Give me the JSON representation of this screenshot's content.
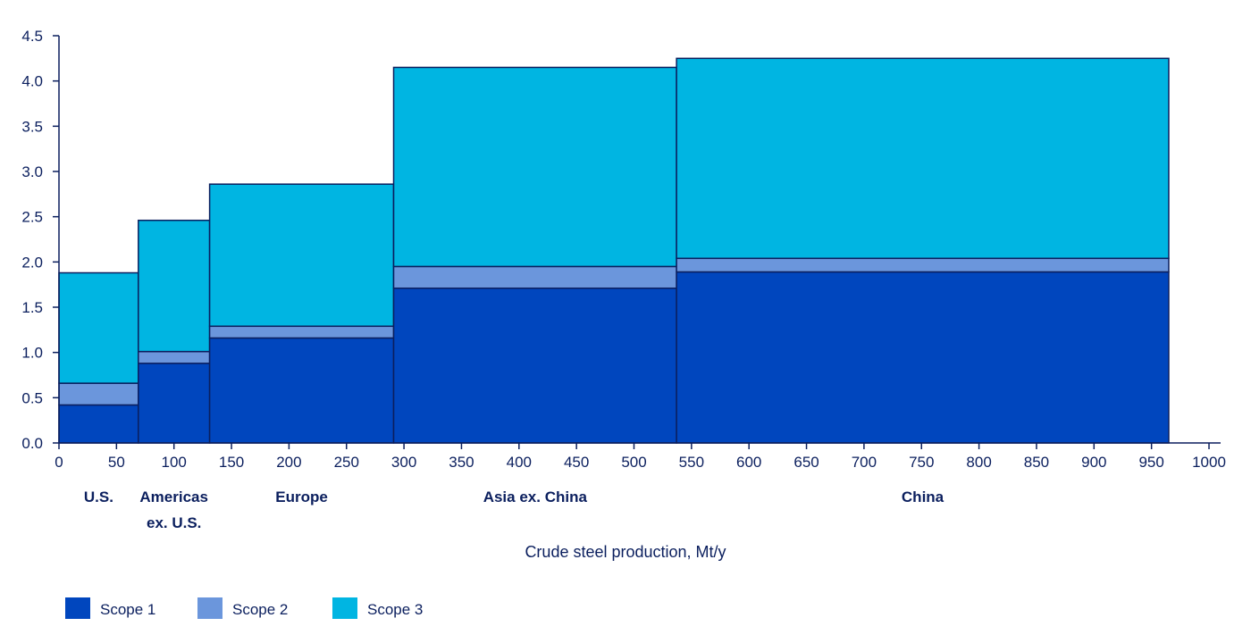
{
  "chart_data": {
    "type": "bar",
    "subtype": "variable-width stacked bar",
    "xlabel": "Crude steel production, Mt/y",
    "ylabel": "",
    "title": "",
    "xlim": [
      0,
      1000
    ],
    "ylim": [
      0,
      4.5
    ],
    "x_ticks": [
      0,
      50,
      100,
      150,
      200,
      250,
      300,
      350,
      400,
      450,
      500,
      550,
      600,
      650,
      700,
      750,
      800,
      850,
      900,
      950,
      1000
    ],
    "y_ticks": [
      0.0,
      0.5,
      1.0,
      1.5,
      2.0,
      2.5,
      3.0,
      3.5,
      4.0,
      4.5
    ],
    "y_tick_labels": [
      "0.0",
      "0.5",
      "1.0",
      "1.5",
      "2.0",
      "2.5",
      "3.0",
      "3.5",
      "4.0",
      "4.5"
    ],
    "grid": false,
    "legend_position": "bottom-left",
    "categories": [
      {
        "label_lines": [
          "U.S."
        ],
        "x_start": 0,
        "x_end": 69
      },
      {
        "label_lines": [
          "Americas",
          "ex. U.S."
        ],
        "x_start": 69,
        "x_end": 131
      },
      {
        "label_lines": [
          "Europe"
        ],
        "x_start": 131,
        "x_end": 291
      },
      {
        "label_lines": [
          "Asia ex. China"
        ],
        "x_start": 291,
        "x_end": 537
      },
      {
        "label_lines": [
          "China"
        ],
        "x_start": 537,
        "x_end": 965
      }
    ],
    "series": [
      {
        "name": "Scope 1",
        "color": "#0046be",
        "values": [
          0.42,
          0.88,
          1.16,
          1.71,
          1.89
        ]
      },
      {
        "name": "Scope 2",
        "color": "#6b96dc",
        "values": [
          0.24,
          0.13,
          0.13,
          0.24,
          0.15
        ]
      },
      {
        "name": "Scope 3",
        "color": "#00b5e2",
        "values": [
          1.22,
          1.45,
          1.57,
          2.2,
          2.21
        ]
      }
    ]
  },
  "colors": {
    "axis": "#0b1f5e",
    "bar_outline": "#0b1f5e"
  }
}
